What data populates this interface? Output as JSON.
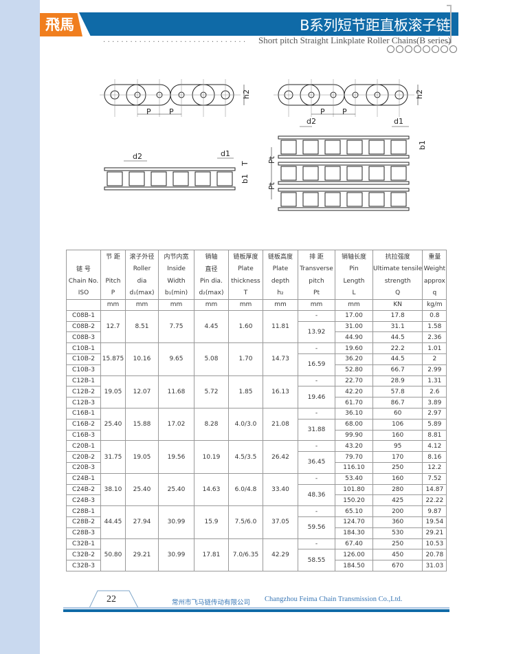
{
  "header": {
    "logo": "飛馬",
    "title": "B系列短节距直板滚子链",
    "subtitle": "Short pitch Straight Linkplate Roller Chains(B series)",
    "dots": "................................",
    "brand_color": "#0f6aa7",
    "accent_color": "#f07e1e"
  },
  "diagram": {
    "pitch": "P",
    "plate_height": "h2",
    "pin_dia": "d2",
    "roller_dia": "d1",
    "thickness": "T",
    "inner_width": "b1",
    "transverse": "Pt"
  },
  "table": {
    "headers": [
      [
        "",
        "节 距",
        "滚子外径",
        "内节内宽",
        "销轴",
        "链板厚度",
        "链板高度",
        "排 距",
        "销轴长度",
        "抗拉强度",
        "重量"
      ],
      [
        "链 号",
        "",
        "Roller",
        "Inside",
        "直径",
        "Plate",
        "Plate",
        "Transverse",
        "Pin",
        "Ultimate tensile",
        "Weight"
      ],
      [
        "Chain No.",
        "Pitch",
        "dia",
        "Width",
        "Pin dia.",
        "thickness",
        "depth",
        "pitch",
        "Length",
        "strength",
        "approx"
      ],
      [
        "ISO",
        "P",
        "d₁(max)",
        "b₁(min)",
        "d₂(max)",
        "T",
        "h₂",
        "Pt",
        "L",
        "Q",
        "q"
      ],
      [
        "",
        "mm",
        "mm",
        "mm",
        "mm",
        "mm",
        "mm",
        "mm",
        "mm",
        "KN",
        "kg/m"
      ]
    ],
    "groups": [
      {
        "p": "12.7",
        "d1": "8.51",
        "b1": "7.75",
        "d2": "4.45",
        "t": "1.60",
        "h2": "11.81",
        "pt": "13.92",
        "rows": [
          [
            "C08B-1",
            "17.00",
            "17.8",
            "0.8"
          ],
          [
            "C08B-2",
            "31.00",
            "31.1",
            "1.58"
          ],
          [
            "C08B-3",
            "44.90",
            "44.5",
            "2.36"
          ]
        ]
      },
      {
        "p": "15.875",
        "d1": "10.16",
        "b1": "9.65",
        "d2": "5.08",
        "t": "1.70",
        "h2": "14.73",
        "pt": "16.59",
        "rows": [
          [
            "C10B-1",
            "19.60",
            "22.2",
            "1.01"
          ],
          [
            "C10B-2",
            "36.20",
            "44.5",
            "2"
          ],
          [
            "C10B-3",
            "52.80",
            "66.7",
            "2.99"
          ]
        ]
      },
      {
        "p": "19.05",
        "d1": "12.07",
        "b1": "11.68",
        "d2": "5.72",
        "t": "1.85",
        "h2": "16.13",
        "pt": "19.46",
        "rows": [
          [
            "C12B-1",
            "22.70",
            "28.9",
            "1.31"
          ],
          [
            "C12B-2",
            "42.20",
            "57.8",
            "2.6"
          ],
          [
            "C12B-3",
            "61.70",
            "86.7",
            "3.89"
          ]
        ]
      },
      {
        "p": "25.40",
        "d1": "15.88",
        "b1": "17.02",
        "d2": "8.28",
        "t": "4.0/3.0",
        "h2": "21.08",
        "pt": "31.88",
        "rows": [
          [
            "C16B-1",
            "36.10",
            "60",
            "2.97"
          ],
          [
            "C16B-2",
            "68.00",
            "106",
            "5.89"
          ],
          [
            "C16B-3",
            "99.90",
            "160",
            "8.81"
          ]
        ]
      },
      {
        "p": "31.75",
        "d1": "19.05",
        "b1": "19.56",
        "d2": "10.19",
        "t": "4.5/3.5",
        "h2": "26.42",
        "pt": "36.45",
        "rows": [
          [
            "C20B-1",
            "43.20",
            "95",
            "4.12"
          ],
          [
            "C20B-2",
            "79.70",
            "170",
            "8.16"
          ],
          [
            "C20B-3",
            "116.10",
            "250",
            "12.2"
          ]
        ]
      },
      {
        "p": "38.10",
        "d1": "25.40",
        "b1": "25.40",
        "d2": "14.63",
        "t": "6.0/4.8",
        "h2": "33.40",
        "pt": "48.36",
        "rows": [
          [
            "C24B-1",
            "53.40",
            "160",
            "7.52"
          ],
          [
            "C24B-2",
            "101.80",
            "280",
            "14.87"
          ],
          [
            "C24B-3",
            "150.20",
            "425",
            "22.22"
          ]
        ]
      },
      {
        "p": "44.45",
        "d1": "27.94",
        "b1": "30.99",
        "d2": "15.9",
        "t": "7.5/6.0",
        "h2": "37.05",
        "pt": "59.56",
        "rows": [
          [
            "C28B-1",
            "65.10",
            "200",
            "9.87"
          ],
          [
            "C28B-2",
            "124.70",
            "360",
            "19.54"
          ],
          [
            "C28B-3",
            "184.30",
            "530",
            "29.21"
          ]
        ]
      },
      {
        "p": "50.80",
        "d1": "29.21",
        "b1": "30.99",
        "d2": "17.81",
        "t": "7.0/6.35",
        "h2": "42.29",
        "pt": "58.55",
        "rows": [
          [
            "C32B-1",
            "67.40",
            "250",
            "10.53"
          ],
          [
            "C32B-2",
            "126.00",
            "450",
            "20.78"
          ],
          [
            "C32B-3",
            "184.50",
            "670",
            "31.03"
          ]
        ]
      }
    ],
    "single_row_pt": "-"
  },
  "footer": {
    "page": "22",
    "company_cn": "常州市飞马链传动有限公司",
    "company_en": "Changzhou Feima Chain Transmission Co.,Ltd."
  }
}
